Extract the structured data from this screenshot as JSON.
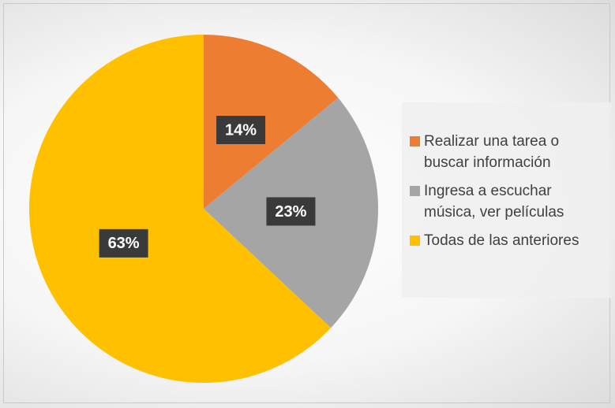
{
  "chart_data": {
    "type": "pie",
    "categories": [
      "Realizar una tarea o buscar información",
      "Ingresa a escuchar música, ver películas",
      "Todas de las anteriores"
    ],
    "values": [
      14,
      23,
      63
    ],
    "value_labels": [
      "14%",
      "23%",
      "63%"
    ],
    "colors": [
      "#ed7d31",
      "#a5a5a5",
      "#ffc000"
    ]
  }
}
